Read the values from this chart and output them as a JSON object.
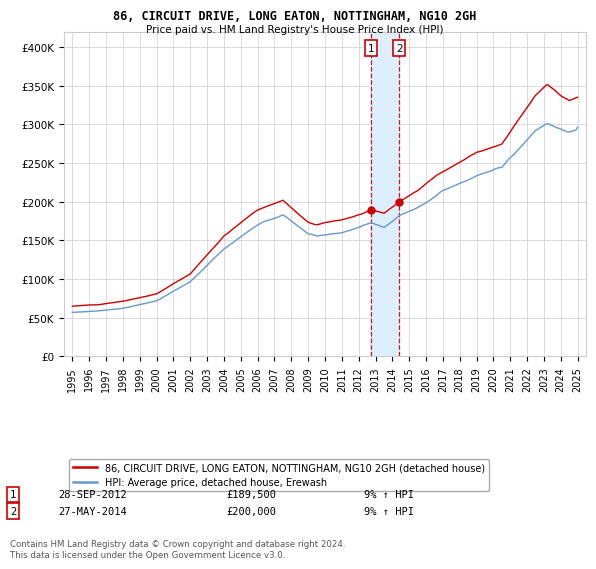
{
  "title": "86, CIRCUIT DRIVE, LONG EATON, NOTTINGHAM, NG10 2GH",
  "subtitle": "Price paid vs. HM Land Registry's House Price Index (HPI)",
  "red_label": "86, CIRCUIT DRIVE, LONG EATON, NOTTINGHAM, NG10 2GH (detached house)",
  "blue_label": "HPI: Average price, detached house, Erewash",
  "transaction1_date": "28-SEP-2012",
  "transaction1_price": 189500,
  "transaction1_hpi": "9% ↑ HPI",
  "transaction2_date": "27-MAY-2014",
  "transaction2_price": 200000,
  "transaction2_hpi": "9% ↑ HPI",
  "footer": "Contains HM Land Registry data © Crown copyright and database right 2024.\nThis data is licensed under the Open Government Licence v3.0.",
  "ylim": [
    0,
    420000
  ],
  "yticks": [
    0,
    50000,
    100000,
    150000,
    200000,
    250000,
    300000,
    350000,
    400000
  ],
  "ytick_labels": [
    "£0",
    "£50K",
    "£100K",
    "£150K",
    "£200K",
    "£250K",
    "£300K",
    "£350K",
    "£400K"
  ],
  "transaction1_year": 2012.75,
  "transaction2_year": 2014.4,
  "background_color": "#ffffff",
  "grid_color": "#cccccc",
  "red_color": "#cc0000",
  "blue_color": "#6699cc",
  "shading_color": "#ddeeff",
  "xlim_left": 1994.5,
  "xlim_right": 2025.5,
  "start_year": 1995,
  "end_year": 2025
}
